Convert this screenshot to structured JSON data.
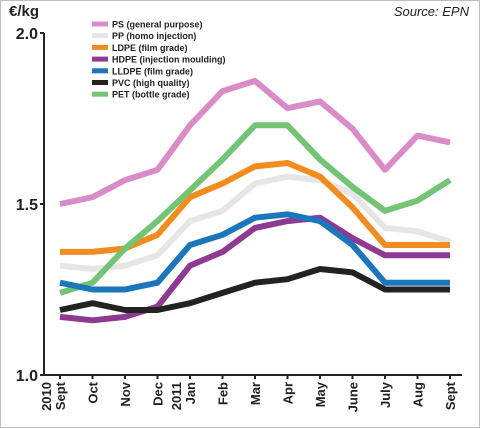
{
  "header": {
    "unit_label": "€/kg",
    "source": "Source: EPN"
  },
  "chart_data": {
    "type": "line",
    "title": "",
    "xlabel": "",
    "ylabel": "€/kg",
    "categories": [
      "2010 Sept",
      "Oct",
      "Nov",
      "Dec",
      "2011 Jan",
      "Feb",
      "Mar",
      "Apr",
      "May",
      "June",
      "July",
      "Aug",
      "Sept"
    ],
    "x_tick_labels": [
      {
        "year": "2010",
        "month": "Sept"
      },
      {
        "year": "",
        "month": "Oct"
      },
      {
        "year": "",
        "month": "Nov"
      },
      {
        "year": "",
        "month": "Dec"
      },
      {
        "year": "2011",
        "month": "Jan"
      },
      {
        "year": "",
        "month": "Feb"
      },
      {
        "year": "",
        "month": "Mar"
      },
      {
        "year": "",
        "month": "Apr"
      },
      {
        "year": "",
        "month": "May"
      },
      {
        "year": "",
        "month": "June"
      },
      {
        "year": "",
        "month": "July"
      },
      {
        "year": "",
        "month": "Aug"
      },
      {
        "year": "",
        "month": "Sept"
      }
    ],
    "y_ticks": [
      "1.0",
      "1.5",
      "2.0"
    ],
    "ylim": [
      1.0,
      2.0
    ],
    "grid": false,
    "legend_position": "top-left",
    "series": [
      {
        "name": "PS (general purpose)",
        "color": "#d98cc7",
        "values": [
          1.5,
          1.52,
          1.57,
          1.6,
          1.73,
          1.83,
          1.86,
          1.78,
          1.8,
          1.72,
          1.6,
          1.7,
          1.68
        ]
      },
      {
        "name": "PP (homo injection)",
        "color": "#e6e6e6",
        "values": [
          1.32,
          1.31,
          1.32,
          1.35,
          1.45,
          1.48,
          1.56,
          1.58,
          1.57,
          1.53,
          1.43,
          1.42,
          1.39
        ]
      },
      {
        "name": "LDPE (film grade)",
        "color": "#f28c1e",
        "values": [
          1.36,
          1.36,
          1.37,
          1.41,
          1.52,
          1.56,
          1.61,
          1.62,
          1.58,
          1.49,
          1.38,
          1.38,
          1.38
        ]
      },
      {
        "name": "HDPE (injection moulding)",
        "color": "#8e3a92",
        "values": [
          1.17,
          1.16,
          1.17,
          1.2,
          1.32,
          1.36,
          1.43,
          1.45,
          1.46,
          1.4,
          1.35,
          1.35,
          1.35
        ]
      },
      {
        "name": "LLDPE (film grade)",
        "color": "#1b76bc",
        "values": [
          1.27,
          1.25,
          1.25,
          1.27,
          1.38,
          1.41,
          1.46,
          1.47,
          1.45,
          1.38,
          1.27,
          1.27,
          1.27
        ]
      },
      {
        "name": "PVC (high quality)",
        "color": "#222222",
        "values": [
          1.19,
          1.21,
          1.19,
          1.19,
          1.21,
          1.24,
          1.27,
          1.28,
          1.31,
          1.3,
          1.25,
          1.25,
          1.25
        ]
      },
      {
        "name": "PET (bottle grade)",
        "color": "#74c476",
        "values": [
          1.24,
          1.27,
          1.37,
          1.45,
          1.54,
          1.63,
          1.73,
          1.73,
          1.63,
          1.55,
          1.48,
          1.51,
          1.57
        ]
      }
    ]
  }
}
